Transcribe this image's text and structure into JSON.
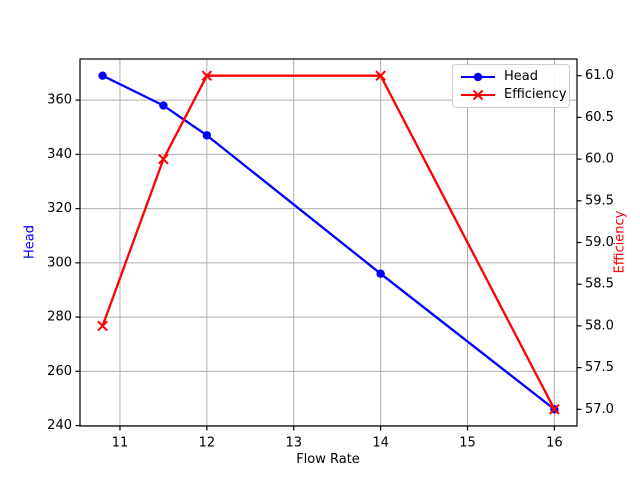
{
  "chart_data": {
    "type": "line",
    "xlabel": "Flow Rate",
    "ylabel_left": "Head",
    "ylabel_right": "Efficiency",
    "x": [
      10.8,
      11.5,
      12,
      14,
      16
    ],
    "series": [
      {
        "name": "Head",
        "axis": "left",
        "color": "#0000ff",
        "marker": "circle",
        "values": [
          369,
          358,
          347,
          296,
          246
        ]
      },
      {
        "name": "Efficiency",
        "axis": "right",
        "color": "#ff0000",
        "marker": "x",
        "values": [
          58,
          60,
          61,
          61,
          57
        ]
      }
    ],
    "xlim": [
      10.54,
      16.26
    ],
    "ylim_left": [
      239.85,
      375.15
    ],
    "ylim_right": [
      56.8,
      61.2
    ],
    "xtick_labels": [
      "11",
      "12",
      "13",
      "14",
      "15",
      "16"
    ],
    "ytick_labels_left": [
      "240",
      "260",
      "280",
      "300",
      "320",
      "340",
      "360"
    ],
    "ytick_labels_right": [
      "57.0",
      "57.5",
      "58.0",
      "58.5",
      "59.0",
      "59.5",
      "60.0",
      "60.5",
      "61.0"
    ],
    "grid": true,
    "grid_axis": "left",
    "legend": {
      "position": "upper right",
      "entries": [
        "Head",
        "Efficiency"
      ]
    },
    "colors": {
      "grid": "#b0b0b0",
      "spine": "#000000",
      "tick_label": "#000000",
      "background": "#ffffff"
    }
  }
}
